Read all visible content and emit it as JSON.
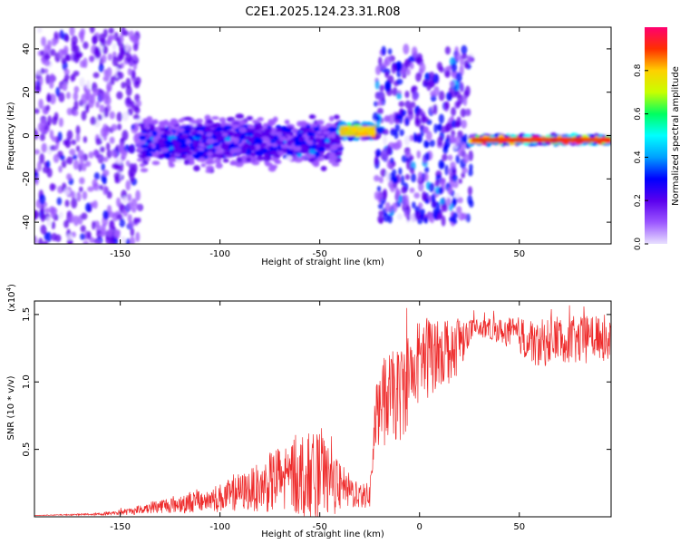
{
  "title": "C2E1.2025.124.23.31.R08",
  "colors": {
    "snr_line": "#ee2a2a",
    "axis": "#000000",
    "colormap": [
      "#e8e0ff",
      "#9b55ff",
      "#5a00ee",
      "#0000ff",
      "#00a0ff",
      "#00ffff",
      "#00ff60",
      "#c8ff00",
      "#ffd000",
      "#ff3000",
      "#ff0070"
    ]
  },
  "chart_data": [
    {
      "type": "heatmap",
      "xlabel": "Height of straight line (km)",
      "ylabel": "Frequency (Hz)",
      "xlim": [
        -193,
        96
      ],
      "ylim": [
        -50,
        50
      ],
      "x_ticks": [
        -150,
        -100,
        -50,
        0,
        50
      ],
      "y_ticks": [
        -40,
        -20,
        0,
        20,
        40
      ],
      "colorbar": {
        "label": "Normalized spectral amplitude",
        "range": [
          0,
          1
        ],
        "ticks": [
          "0.0",
          "0.2",
          "0.4",
          "0.6",
          "0.8"
        ],
        "tick_values": [
          0,
          0.2,
          0.4,
          0.6,
          0.8
        ]
      },
      "regions": [
        {
          "x": [
            -193,
            -140
          ],
          "freq_spread": 50,
          "amplitude": 0.15
        },
        {
          "x": [
            -140,
            -40
          ],
          "freq_center": -3,
          "freq_spread": 12,
          "amplitude": 0.3
        },
        {
          "x": [
            -40,
            -22
          ],
          "freq_center": 2,
          "freq_spread": 4,
          "amplitude": 0.8
        },
        {
          "x": [
            -22,
            26
          ],
          "freq_spread": 40,
          "amplitude": 0.2
        },
        {
          "x": [
            26,
            96
          ],
          "freq_center": -2,
          "freq_spread": 2,
          "amplitude": 0.85
        }
      ]
    },
    {
      "type": "line",
      "xlabel": "Height of straight line (km)",
      "ylabel": "SNR (10 * v/v)",
      "y_multiplier": "(x10",
      "y_multiplier_exp": "4",
      "y_multiplier_close": ")",
      "xlim": [
        -193,
        96
      ],
      "ylim": [
        0,
        1.6
      ],
      "x_ticks": [
        -150,
        -100,
        -50,
        0,
        50
      ],
      "y_ticks": [
        "0.5",
        "1.0",
        "1.5"
      ],
      "y_tick_values": [
        0.5,
        1.0,
        1.5
      ],
      "series": [
        {
          "x": [
            -193,
            -160,
            -145,
            -135,
            -120,
            -110,
            -100,
            -90,
            -80,
            -70,
            -60,
            -50,
            -45,
            -40,
            -35,
            -30,
            -25,
            -22,
            -20,
            -15,
            -10,
            -5,
            0,
            5,
            10,
            15,
            20,
            25,
            30,
            40,
            50,
            55,
            60,
            70,
            80,
            90,
            96
          ],
          "values": [
            0.01,
            0.02,
            0.04,
            0.07,
            0.1,
            0.12,
            0.14,
            0.18,
            0.22,
            0.28,
            0.32,
            0.3,
            0.27,
            0.22,
            0.19,
            0.17,
            0.15,
            0.72,
            0.85,
            0.9,
            0.9,
            1.05,
            1.15,
            1.2,
            1.25,
            1.25,
            1.3,
            1.38,
            1.4,
            1.38,
            1.35,
            1.3,
            1.28,
            1.33,
            1.3,
            1.35,
            1.3
          ],
          "noise": [
            0.0,
            0.01,
            0.03,
            0.05,
            0.08,
            0.1,
            0.12,
            0.15,
            0.2,
            0.3,
            0.35,
            0.35,
            0.3,
            0.2,
            0.15,
            0.12,
            0.1,
            0.25,
            0.35,
            0.35,
            0.4,
            0.4,
            0.35,
            0.35,
            0.3,
            0.3,
            0.25,
            0.1,
            0.08,
            0.1,
            0.15,
            0.2,
            0.2,
            0.2,
            0.2,
            0.2,
            0.2
          ]
        }
      ]
    }
  ]
}
